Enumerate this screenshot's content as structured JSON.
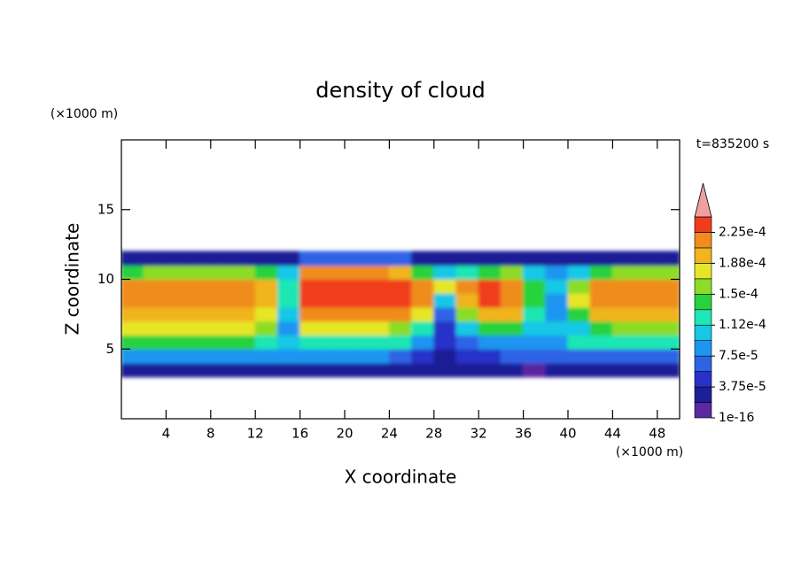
{
  "chart_data": {
    "type": "contour",
    "title": "density of cloud",
    "x_label": "X coordinate",
    "y_label": "Z coordinate",
    "x_unit": "(×1000 m)",
    "y_unit": "(×1000 m)",
    "annotation": "t=835200 s",
    "xlim": [
      0,
      50
    ],
    "ylim": [
      0,
      20
    ],
    "xticks": [
      4,
      8,
      12,
      16,
      20,
      24,
      28,
      32,
      36,
      40,
      44,
      48
    ],
    "yticks": [
      5,
      10,
      15
    ],
    "x": [
      1,
      3,
      5,
      7,
      9,
      11,
      13,
      15,
      17,
      19,
      21,
      23,
      25,
      27,
      29,
      31,
      33,
      35,
      37,
      39,
      41,
      43,
      45,
      47,
      49
    ],
    "y": [
      3.5,
      4.5,
      5.5,
      6.5,
      7.5,
      8.5,
      9.5,
      10.5,
      11.5
    ],
    "z": [
      [
        2.8e-05,
        2.8e-05,
        2.8e-05,
        2.8e-05,
        2.8e-05,
        2.8e-05,
        2.8e-05,
        2.8e-05,
        2.8e-05,
        2.8e-05,
        2.8e-05,
        2.8e-05,
        2.8e-05,
        2.8e-05,
        2.8e-05,
        2.8e-05,
        2.8e-05,
        2.8e-05,
        9e-06,
        2.8e-05,
        2.8e-05,
        2.8e-05,
        2.8e-05,
        2.8e-05,
        2.8e-05
      ],
      [
        8.4e-05,
        8.4e-05,
        8.4e-05,
        8.4e-05,
        8.4e-05,
        8.4e-05,
        8.4e-05,
        8.4e-05,
        8.4e-05,
        8.4e-05,
        8.4e-05,
        8.4e-05,
        6.6e-05,
        4.7e-05,
        2.8e-05,
        4.7e-05,
        4.7e-05,
        6.6e-05,
        6.6e-05,
        6.6e-05,
        6.6e-05,
        6.6e-05,
        6.6e-05,
        6.6e-05,
        6.6e-05
      ],
      [
        0.000141,
        0.000141,
        0.000141,
        0.000141,
        0.000141,
        0.000141,
        0.000122,
        0.000103,
        0.000122,
        0.000122,
        0.000122,
        0.000122,
        0.000122,
        8.4e-05,
        4.7e-05,
        6.6e-05,
        8.4e-05,
        8.4e-05,
        8.4e-05,
        8.4e-05,
        0.000122,
        0.000122,
        0.000122,
        0.000122,
        0.000122
      ],
      [
        0.000178,
        0.000178,
        0.000178,
        0.000178,
        0.000178,
        0.000178,
        0.000159,
        8.4e-05,
        0.000178,
        0.000178,
        0.000178,
        0.000178,
        0.000159,
        0.000122,
        4.7e-05,
        0.000103,
        0.000141,
        0.000141,
        0.000103,
        0.000103,
        0.000103,
        0.000141,
        0.000159,
        0.000159,
        0.000159
      ],
      [
        0.000197,
        0.000197,
        0.000197,
        0.000197,
        0.000197,
        0.000197,
        0.000178,
        0.000103,
        0.000216,
        0.000216,
        0.000216,
        0.000216,
        0.000216,
        0.000178,
        6.6e-05,
        0.000159,
        0.000197,
        0.000197,
        0.000122,
        8.4e-05,
        0.000141,
        0.000197,
        0.000197,
        0.000197,
        0.000197
      ],
      [
        0.000216,
        0.000216,
        0.000216,
        0.000216,
        0.000216,
        0.000216,
        0.000197,
        0.000122,
        0.000234,
        0.000234,
        0.000234,
        0.000234,
        0.000234,
        0.000216,
        0.000103,
        0.000197,
        0.000234,
        0.000216,
        0.000141,
        8.4e-05,
        0.000178,
        0.000216,
        0.000216,
        0.000216,
        0.000216
      ],
      [
        0.000216,
        0.000216,
        0.000216,
        0.000216,
        0.000216,
        0.000216,
        0.000197,
        0.000122,
        0.000234,
        0.000234,
        0.000234,
        0.000234,
        0.000234,
        0.000216,
        0.000178,
        0.000216,
        0.000234,
        0.000216,
        0.000141,
        0.000103,
        0.000159,
        0.000216,
        0.000216,
        0.000216,
        0.000216
      ],
      [
        0.000141,
        0.000159,
        0.000159,
        0.000159,
        0.000159,
        0.000159,
        0.000141,
        0.000103,
        0.000216,
        0.000216,
        0.000216,
        0.000216,
        0.000197,
        0.000141,
        0.000103,
        0.000122,
        0.000141,
        0.000159,
        0.000103,
        8.4e-05,
        0.000103,
        0.000141,
        0.000159,
        0.000159,
        0.000159
      ],
      [
        2.8e-05,
        2.8e-05,
        2.8e-05,
        2.8e-05,
        2.8e-05,
        2.8e-05,
        2.8e-05,
        2.8e-05,
        6.6e-05,
        6.6e-05,
        6.6e-05,
        6.6e-05,
        6.6e-05,
        2.8e-05,
        2.8e-05,
        2.8e-05,
        2.8e-05,
        2.8e-05,
        2.8e-05,
        2.8e-05,
        2.8e-05,
        2.8e-05,
        2.8e-05,
        2.8e-05,
        2.8e-05
      ]
    ],
    "levels": [
      1e-16,
      1.875e-05,
      3.75e-05,
      5.625e-05,
      7.5e-05,
      9.375e-05,
      0.0001125,
      0.00013125,
      0.00015,
      0.00016875,
      0.0001875,
      0.00020625,
      0.000225,
      0.00024375
    ],
    "colors": [
      "#5a28a0",
      "#1e1e96",
      "#2832c8",
      "#2d64e6",
      "#1e96f0",
      "#14c8e6",
      "#1ee6b4",
      "#28d23c",
      "#8cdc28",
      "#e6e628",
      "#f0b41e",
      "#f08c1e",
      "#f03c1e"
    ],
    "over_color": "#f0a0a0",
    "colorbar_ticks": [
      1e-16,
      {
        "value": 3.75e-05,
        "label": "3.75e-5"
      },
      {
        "value": 7.5e-05,
        "label": "7.5e-5"
      },
      {
        "value": 0.0001125,
        "label": "1.12e-4"
      },
      {
        "value": 0.00015,
        "label": "1.5e-4"
      },
      {
        "value": 0.0001875,
        "label": "1.88e-4"
      },
      {
        "value": 0.000225,
        "label": "2.25e-4"
      }
    ]
  }
}
